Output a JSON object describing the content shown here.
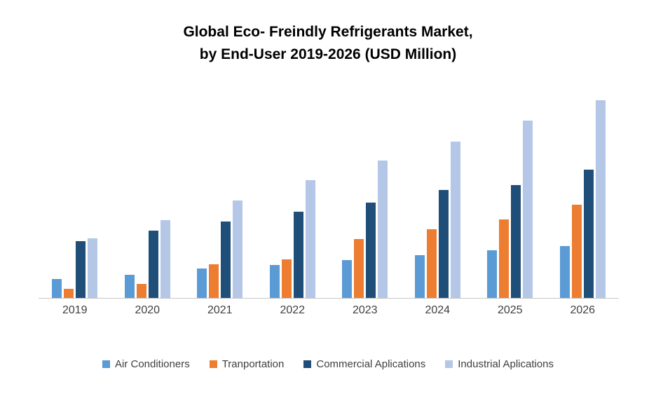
{
  "title": {
    "line1": "Global Eco- Freindly Refrigerants Market,",
    "line2": "by End-User 2019-2026 (USD Million)"
  },
  "chart_data": {
    "type": "bar",
    "title": "Global Eco- Freindly Refrigerants Market, by End-User 2019-2026 (USD Million)",
    "categories": [
      "2019",
      "2020",
      "2021",
      "2022",
      "2023",
      "2024",
      "2025",
      "2026"
    ],
    "series": [
      {
        "name": "Air Conditioners",
        "color": "#5B9BD5",
        "values": [
          27,
          33,
          42,
          47,
          54,
          61,
          68,
          74
        ]
      },
      {
        "name": "Tranportation",
        "color": "#ED7D31",
        "values": [
          13,
          20,
          48,
          55,
          83,
          97,
          111,
          132
        ]
      },
      {
        "name": "Commercial Aplications",
        "color": "#1F4E79",
        "values": [
          80,
          95,
          108,
          122,
          135,
          153,
          160,
          182
        ]
      },
      {
        "name": "Industrial Aplications",
        "color": "#B4C7E7",
        "values": [
          84,
          110,
          138,
          167,
          195,
          222,
          251,
          280
        ]
      }
    ],
    "xlabel": "",
    "ylabel": "",
    "ylim": [
      0,
      300
    ],
    "y_axis_labels_visible": false,
    "grid": false,
    "legend_position": "bottom"
  }
}
